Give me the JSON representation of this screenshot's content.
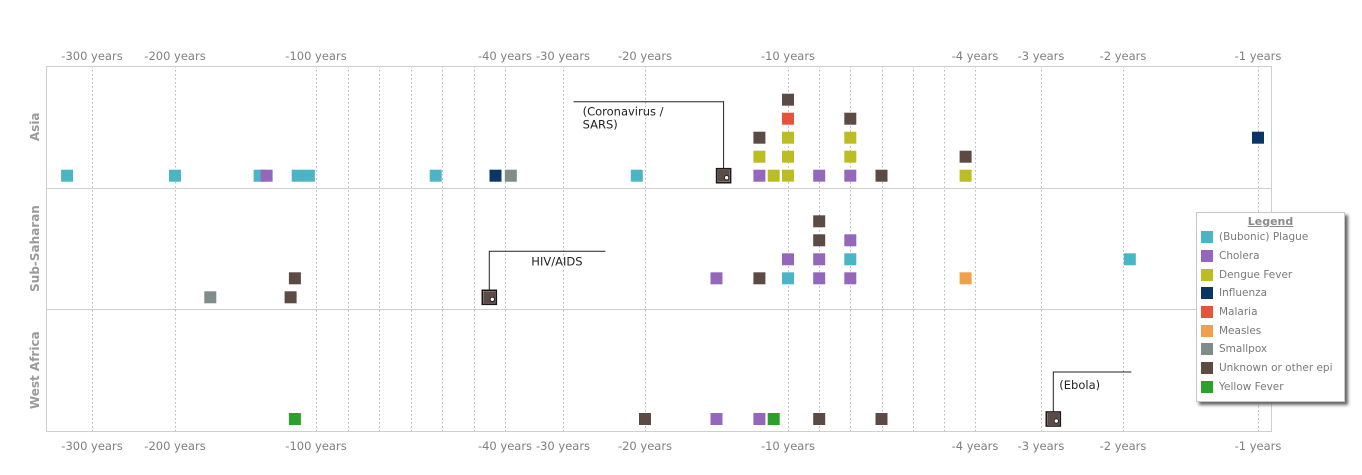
{
  "chart_data": {
    "type": "scatter",
    "x_axis_ticks": [
      "-300 years",
      "-200 years",
      "-100 years",
      "-40 years",
      "-30 years",
      "-20 years",
      "-10 years",
      "-4 years",
      "-3 years",
      "-2 years",
      "-1 years"
    ],
    "rows": [
      "Asia",
      "Sub-Saharan",
      "West Africa"
    ],
    "legend_title": "Legend",
    "categories": [
      {
        "name": "(Bubonic) Plague",
        "color": "#4ab5c4"
      },
      {
        "name": "Cholera",
        "color": "#9467bd"
      },
      {
        "name": "Dengue Fever",
        "color": "#bcbd22"
      },
      {
        "name": "Influenza",
        "color": "#0a3565"
      },
      {
        "name": "Malaria",
        "color": "#e5533b"
      },
      {
        "name": "Measles",
        "color": "#f0a04b"
      },
      {
        "name": "Smallpox",
        "color": "#7f8c8a"
      },
      {
        "name": "Unknown or other epi",
        "color": "#5c4b45"
      },
      {
        "name": "Yellow Fever",
        "color": "#2ca02c"
      }
    ],
    "points": [
      {
        "row": "Asia",
        "x": -330,
        "category": "(Bubonic) Plague",
        "stack": 0
      },
      {
        "row": "Asia",
        "x": -200,
        "category": "(Bubonic) Plague",
        "stack": 0
      },
      {
        "row": "Asia",
        "x": -140,
        "category": "(Bubonic) Plague",
        "stack": 0
      },
      {
        "row": "Asia",
        "x": -135,
        "category": "Cholera",
        "stack": 0
      },
      {
        "row": "Asia",
        "x": -113,
        "category": "(Bubonic) Plague",
        "stack": 0
      },
      {
        "row": "Asia",
        "x": -105,
        "category": "(Bubonic) Plague",
        "stack": 0
      },
      {
        "row": "Asia",
        "x": -62,
        "category": "(Bubonic) Plague",
        "stack": 0
      },
      {
        "row": "Asia",
        "x": -43,
        "category": "Influenza",
        "stack": 0
      },
      {
        "row": "Asia",
        "x": -39,
        "category": "Smallpox",
        "stack": 0
      },
      {
        "row": "Asia",
        "x": -21,
        "category": "(Bubonic) Plague",
        "stack": 0
      },
      {
        "row": "Asia",
        "x": -14.5,
        "category": "Unknown or other epi",
        "stack": 0
      },
      {
        "row": "Asia",
        "x": -12,
        "category": "Cholera",
        "stack": 0
      },
      {
        "row": "Asia",
        "x": -12,
        "category": "Dengue Fever",
        "stack": 1
      },
      {
        "row": "Asia",
        "x": -12,
        "category": "Unknown or other epi",
        "stack": 2
      },
      {
        "row": "Asia",
        "x": -11,
        "category": "Dengue Fever",
        "stack": 0
      },
      {
        "row": "Asia",
        "x": -10,
        "category": "Dengue Fever",
        "stack": 0
      },
      {
        "row": "Asia",
        "x": -10,
        "category": "Dengue Fever",
        "stack": 1
      },
      {
        "row": "Asia",
        "x": -10,
        "category": "Dengue Fever",
        "stack": 2
      },
      {
        "row": "Asia",
        "x": -10,
        "category": "Malaria",
        "stack": 3
      },
      {
        "row": "Asia",
        "x": -10,
        "category": "Unknown or other epi",
        "stack": 4
      },
      {
        "row": "Asia",
        "x": -9,
        "category": "Cholera",
        "stack": 0
      },
      {
        "row": "Asia",
        "x": -8,
        "category": "Cholera",
        "stack": 0
      },
      {
        "row": "Asia",
        "x": -8,
        "category": "Dengue Fever",
        "stack": 1
      },
      {
        "row": "Asia",
        "x": -8,
        "category": "Dengue Fever",
        "stack": 2
      },
      {
        "row": "Asia",
        "x": -8,
        "category": "Unknown or other epi",
        "stack": 3
      },
      {
        "row": "Asia",
        "x": -7,
        "category": "Unknown or other epi",
        "stack": 0
      },
      {
        "row": "Asia",
        "x": -4.3,
        "category": "Dengue Fever",
        "stack": 0
      },
      {
        "row": "Asia",
        "x": -4.3,
        "category": "Unknown or other epi",
        "stack": 1
      },
      {
        "row": "Asia",
        "x": -1,
        "category": "Influenza",
        "stack": 2
      },
      {
        "row": "Sub-Saharan",
        "x": -175,
        "category": "Smallpox",
        "stack": 0
      },
      {
        "row": "Sub-Saharan",
        "x": -118,
        "category": "Unknown or other epi",
        "stack": 0
      },
      {
        "row": "Sub-Saharan",
        "x": -115,
        "category": "Unknown or other epi",
        "stack": 1
      },
      {
        "row": "Sub-Saharan",
        "x": -45,
        "category": "Unknown or other epi",
        "stack": 0
      },
      {
        "row": "Sub-Saharan",
        "x": -15,
        "category": "Cholera",
        "stack": 1
      },
      {
        "row": "Sub-Saharan",
        "x": -12,
        "category": "Unknown or other epi",
        "stack": 1
      },
      {
        "row": "Sub-Saharan",
        "x": -10,
        "category": "(Bubonic) Plague",
        "stack": 1
      },
      {
        "row": "Sub-Saharan",
        "x": -10,
        "category": "Cholera",
        "stack": 2
      },
      {
        "row": "Sub-Saharan",
        "x": -9,
        "category": "Cholera",
        "stack": 1
      },
      {
        "row": "Sub-Saharan",
        "x": -9,
        "category": "Cholera",
        "stack": 2
      },
      {
        "row": "Sub-Saharan",
        "x": -9,
        "category": "Unknown or other epi",
        "stack": 3
      },
      {
        "row": "Sub-Saharan",
        "x": -9,
        "category": "Unknown or other epi",
        "stack": 4
      },
      {
        "row": "Sub-Saharan",
        "x": -8,
        "category": "Cholera",
        "stack": 1
      },
      {
        "row": "Sub-Saharan",
        "x": -8,
        "category": "(Bubonic) Plague",
        "stack": 2
      },
      {
        "row": "Sub-Saharan",
        "x": -8,
        "category": "Cholera",
        "stack": 3
      },
      {
        "row": "Sub-Saharan",
        "x": -4.3,
        "category": "Measles",
        "stack": 1
      },
      {
        "row": "Sub-Saharan",
        "x": -1.95,
        "category": "(Bubonic) Plague",
        "stack": 2
      },
      {
        "row": "West Africa",
        "x": -115,
        "category": "Yellow Fever",
        "stack": 0
      },
      {
        "row": "West Africa",
        "x": -20,
        "category": "Unknown or other epi",
        "stack": 0
      },
      {
        "row": "West Africa",
        "x": -15,
        "category": "Cholera",
        "stack": 0
      },
      {
        "row": "West Africa",
        "x": -12,
        "category": "Cholera",
        "stack": 0
      },
      {
        "row": "West Africa",
        "x": -11,
        "category": "Yellow Fever",
        "stack": 0
      },
      {
        "row": "West Africa",
        "x": -9,
        "category": "Unknown or other epi",
        "stack": 0
      },
      {
        "row": "West Africa",
        "x": -7,
        "category": "Unknown or other epi",
        "stack": 0
      },
      {
        "row": "West Africa",
        "x": -2.85,
        "category": "Unknown or other epi",
        "stack": 0
      }
    ],
    "annotations": [
      {
        "row": "Asia",
        "x": -14.5,
        "lines": [
          "(Coronavirus /",
          "SARS)"
        ]
      },
      {
        "row": "Sub-Saharan",
        "x": -45,
        "lines": [
          "HIV/AIDS"
        ]
      },
      {
        "row": "West Africa",
        "x": -2.85,
        "lines": [
          "(Ebola)"
        ]
      }
    ]
  }
}
